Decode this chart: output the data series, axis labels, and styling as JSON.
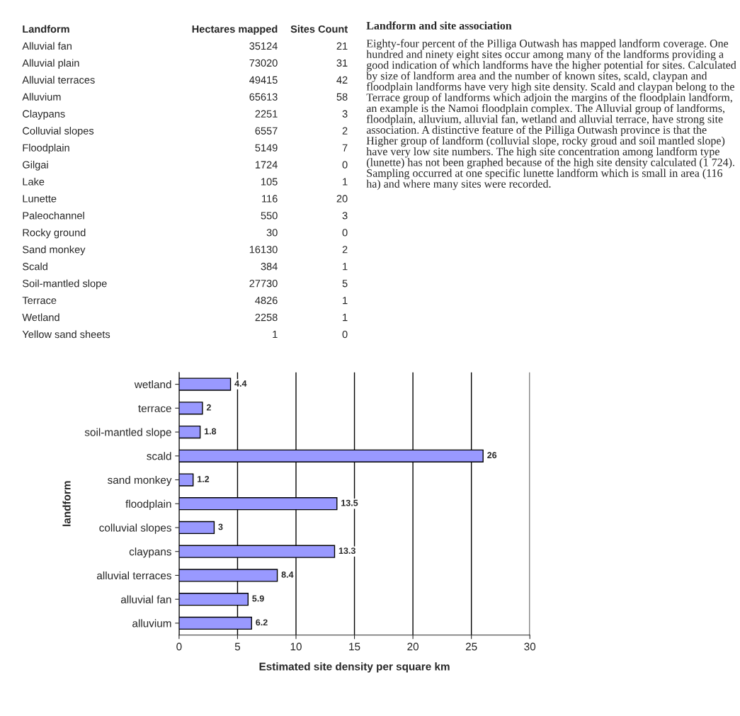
{
  "chart_data": [
    {
      "type": "other",
      "categories": [
        "Alluvial fan",
        "Alluvial plain",
        "Alluvial terraces",
        "Alluvium",
        "Claypans",
        "Colluvial slopes",
        "Floodplain",
        "Gilgai",
        "Lake",
        "Lunette",
        "Paleochannel",
        "Rocky ground",
        "Sand monkey",
        "Scald",
        "Soil-mantled slope",
        "Terrace",
        "Wetland",
        "Yellow sand sheets"
      ],
      "legend_title": "Landform",
      "data_labels": true,
      "series": [
        {
          "name": "Hectares mapped",
          "values": [
            35124,
            73020,
            49415,
            65613,
            2251,
            6557,
            5149,
            1724,
            105,
            116,
            550,
            30,
            16130,
            384,
            27730,
            4826,
            2258,
            1
          ]
        },
        {
          "name": "Sites Count",
          "values": [
            21,
            31,
            42,
            58,
            3,
            2,
            7,
            0,
            1,
            20,
            3,
            0,
            2,
            1,
            5,
            1,
            1,
            0
          ]
        }
      ]
    },
    {
      "type": "other",
      "title": "Landform and site association",
      "annotations": [
        "Eighty-four percent of the Pilliga Outwash has mapped landform coverage. One hundred and ninety eight sites occur among many of the landforms providing a good indication of which landforms have the higher potential for sites. Calculated by size of landform area and the number of known sites, scald, claypan and floodplain landforms have very high site density. Scald and claypan belong to the Terrace group of landforms which adjoin the margins of the floodplain landform, an example is the Namoi floodplain complex. The Alluvial group of landforms, floodplain, alluvium, alluvial fan, wetland and alluvial terrace, have strong site association. A distinctive feature of the Pilliga Outwash province is that the Higher group of landform (colluvial slope, rocky groud and soil mantled slope) have very low site numbers. The high site concentration among landform type (lunette) has not been graphed because of the high site density calculated (1 724). Sampling occurred at one specific lunette landform which is small in area (116 ha) and where many sites were recorded."
      ]
    },
    {
      "type": "bar",
      "orientation": "horizontal",
      "categories": [
        "wetland",
        "terrace",
        "soil-mantled slope",
        "scald",
        "sand monkey",
        "floodplain",
        "colluvial slopes",
        "claypans",
        "alluvial terraces",
        "alluvial fan",
        "alluvium"
      ],
      "values": [
        4.4,
        2,
        1.8,
        26,
        1.2,
        13.5,
        3,
        13.3,
        8.4,
        5.9,
        6.2
      ],
      "color": "#9999ff",
      "data_labels": true,
      "xlim": [
        0,
        30
      ],
      "xticks": [
        0,
        5,
        10,
        15,
        20,
        25,
        30
      ],
      "grid": "x",
      "xlabel": "Estimated site density per square km",
      "ylabel": "landform"
    }
  ]
}
